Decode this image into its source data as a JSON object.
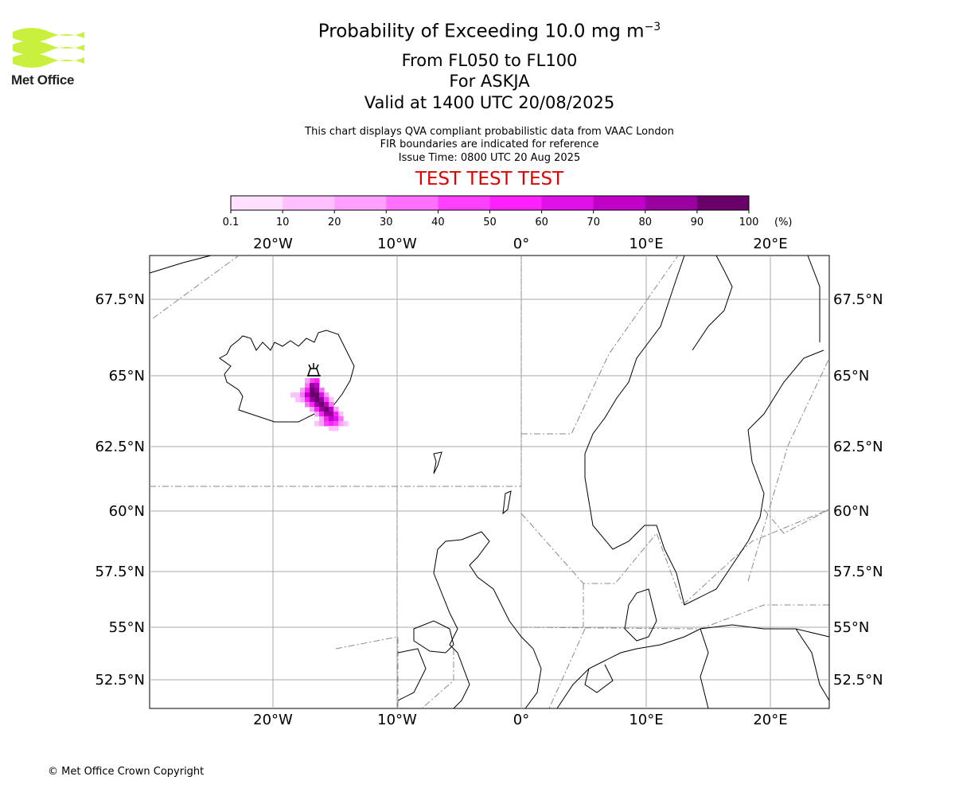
{
  "header": {
    "logo_text": "Met Office",
    "title": "Probability of Exceeding 10.0 mg m",
    "title_exponent": "−3",
    "level_range": "From FL050 to FL100",
    "volcano": "For ASKJA",
    "valid_time": "Valid at 1400 UTC 20/08/2025",
    "info_line_1": "This chart displays QVA compliant probabilistic data from VAAC London",
    "info_line_2": "FIR boundaries are indicated for reference",
    "info_line_3": "Issue Time: 0800 UTC 20 Aug 2025",
    "test_banner": "TEST TEST TEST"
  },
  "colorbar": {
    "ticks": [
      "0.1",
      "10",
      "20",
      "30",
      "40",
      "50",
      "60",
      "70",
      "80",
      "90",
      "100"
    ],
    "unit": "(%)",
    "colors": [
      "#ffe1ff",
      "#ffc0ff",
      "#ff9fff",
      "#ff70ff",
      "#ff40ff",
      "#ff20ff",
      "#e010e8",
      "#c000c8",
      "#9a00a0",
      "#6a006a"
    ]
  },
  "map": {
    "lon_labels": [
      "20°W",
      "10°W",
      "0°",
      "10°E",
      "20°E"
    ],
    "lat_labels": [
      "67.5°N",
      "65°N",
      "62.5°N",
      "60°N",
      "57.5°N",
      "55°N",
      "52.5°N"
    ],
    "volcano_marker_icon": "volcano-icon"
  },
  "footer": {
    "copyright": "© Met Office Crown Copyright"
  }
}
